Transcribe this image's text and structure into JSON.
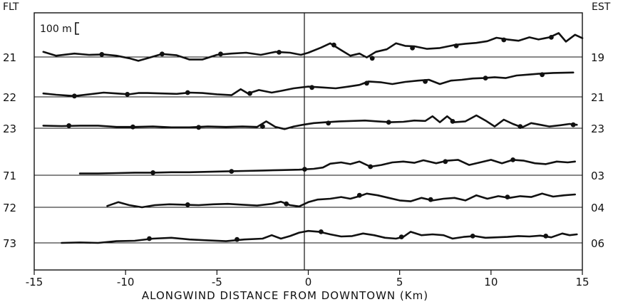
{
  "chart_data": {
    "type": "line",
    "title": "",
    "xlabel": "ALONGWIND DISTANCE FROM DOWNTOWN (Km)",
    "ylabel": "",
    "xlim": [
      -15,
      15
    ],
    "x_ticks": [
      "-15",
      "-10",
      "-5",
      "0",
      "5",
      "10",
      "15"
    ],
    "left_axis_title": "FLT",
    "right_axis_title": "EST",
    "scale_bar_label": "100 m",
    "grid": "horizontal baselines at each flight level",
    "line_color": "#111111",
    "series": [
      {
        "name": "21",
        "est": "19",
        "points": [
          [
            -14.5,
            12
          ],
          [
            -13.8,
            3
          ],
          [
            -12.8,
            8
          ],
          [
            -12,
            5
          ],
          [
            -11.2,
            6
          ],
          [
            -10.5,
            3
          ],
          [
            -9.8,
            -3
          ],
          [
            -9.3,
            -9
          ],
          [
            -8.8,
            -3
          ],
          [
            -8,
            7
          ],
          [
            -7.2,
            4
          ],
          [
            -6.5,
            -6
          ],
          [
            -5.8,
            -6
          ],
          [
            -5,
            5
          ],
          [
            -4.2,
            8
          ],
          [
            -3.4,
            10
          ],
          [
            -2.6,
            5
          ],
          [
            -1.8,
            12
          ],
          [
            -1,
            10
          ],
          [
            -0.4,
            5
          ],
          [
            0,
            10
          ],
          [
            0.7,
            22
          ],
          [
            1.2,
            32
          ],
          [
            1.8,
            16
          ],
          [
            2.3,
            3
          ],
          [
            2.8,
            8
          ],
          [
            3.2,
            -1
          ],
          [
            3.7,
            12
          ],
          [
            4.3,
            18
          ],
          [
            4.8,
            32
          ],
          [
            5.3,
            26
          ],
          [
            5.8,
            25
          ],
          [
            6.5,
            19
          ],
          [
            7.2,
            21
          ],
          [
            8,
            28
          ],
          [
            8.6,
            31
          ],
          [
            9.2,
            33
          ],
          [
            9.8,
            37
          ],
          [
            10.3,
            45
          ],
          [
            10.9,
            41
          ],
          [
            11.5,
            38
          ],
          [
            12.1,
            46
          ],
          [
            12.6,
            41
          ],
          [
            13.2,
            46
          ],
          [
            13.7,
            56
          ],
          [
            14.1,
            36
          ],
          [
            14.6,
            52
          ],
          [
            15,
            44
          ]
        ],
        "markers": [
          [
            -11.3,
            6
          ],
          [
            -8,
            7
          ],
          [
            -4.8,
            7
          ],
          [
            -1.6,
            11
          ],
          [
            1.4,
            28
          ],
          [
            3.5,
            -3
          ],
          [
            5.7,
            21
          ],
          [
            8.1,
            26
          ],
          [
            10.7,
            40
          ],
          [
            13.3,
            46
          ]
        ]
      },
      {
        "name": "22",
        "est": "21",
        "points": [
          [
            -14.5,
            8
          ],
          [
            -13.8,
            5
          ],
          [
            -12.8,
            2
          ],
          [
            -12,
            6
          ],
          [
            -11.2,
            10
          ],
          [
            -10.5,
            8
          ],
          [
            -9.8,
            6
          ],
          [
            -9.3,
            9
          ],
          [
            -8.8,
            9
          ],
          [
            -8,
            8
          ],
          [
            -7.2,
            7
          ],
          [
            -6.5,
            10
          ],
          [
            -5.8,
            9
          ],
          [
            -5,
            6
          ],
          [
            -4.2,
            4
          ],
          [
            -3.7,
            18
          ],
          [
            -3.3,
            8
          ],
          [
            -2.7,
            16
          ],
          [
            -2,
            10
          ],
          [
            -1.5,
            14
          ],
          [
            -0.8,
            20
          ],
          [
            0,
            24
          ],
          [
            0.8,
            22
          ],
          [
            1.5,
            20
          ],
          [
            2.2,
            24
          ],
          [
            2.8,
            28
          ],
          [
            3.3,
            36
          ],
          [
            4,
            34
          ],
          [
            4.6,
            30
          ],
          [
            5.3,
            35
          ],
          [
            6,
            38
          ],
          [
            6.6,
            40
          ],
          [
            7.2,
            30
          ],
          [
            7.8,
            38
          ],
          [
            8.4,
            40
          ],
          [
            9,
            43
          ],
          [
            9.6,
            44
          ],
          [
            10.2,
            46
          ],
          [
            10.8,
            44
          ],
          [
            11.4,
            50
          ],
          [
            12,
            52
          ],
          [
            12.6,
            54
          ],
          [
            13.4,
            56
          ],
          [
            14.5,
            57
          ]
        ],
        "markers": [
          [
            -12.8,
            2
          ],
          [
            -9.9,
            6
          ],
          [
            -6.6,
            10
          ],
          [
            -3.2,
            8
          ],
          [
            0.2,
            22
          ],
          [
            3.2,
            32
          ],
          [
            6.4,
            36
          ],
          [
            9.7,
            44
          ],
          [
            12.8,
            52
          ]
        ]
      },
      {
        "name": "23",
        "est": "23",
        "points": [
          [
            -14.5,
            6
          ],
          [
            -13.5,
            5
          ],
          [
            -12.5,
            6
          ],
          [
            -11.5,
            6
          ],
          [
            -10.5,
            3
          ],
          [
            -9.5,
            3
          ],
          [
            -8.5,
            4
          ],
          [
            -7.5,
            2
          ],
          [
            -6.5,
            2
          ],
          [
            -5.5,
            4
          ],
          [
            -4.5,
            3
          ],
          [
            -3.6,
            4
          ],
          [
            -2.8,
            3
          ],
          [
            -2.3,
            16
          ],
          [
            -1.8,
            3
          ],
          [
            -1.3,
            -2
          ],
          [
            -0.8,
            4
          ],
          [
            -0.3,
            8
          ],
          [
            0.3,
            12
          ],
          [
            1,
            14
          ],
          [
            1.7,
            16
          ],
          [
            2.4,
            17
          ],
          [
            3.1,
            18
          ],
          [
            3.8,
            16
          ],
          [
            4.5,
            14
          ],
          [
            5.2,
            15
          ],
          [
            5.8,
            18
          ],
          [
            6.4,
            17
          ],
          [
            6.8,
            28
          ],
          [
            7.2,
            14
          ],
          [
            7.6,
            28
          ],
          [
            8,
            14
          ],
          [
            8.6,
            16
          ],
          [
            9.2,
            30
          ],
          [
            9.7,
            18
          ],
          [
            10.2,
            4
          ],
          [
            10.7,
            20
          ],
          [
            11.2,
            10
          ],
          [
            11.7,
            2
          ],
          [
            12.2,
            12
          ],
          [
            12.7,
            8
          ],
          [
            13.2,
            4
          ],
          [
            13.8,
            7
          ],
          [
            14.3,
            10
          ],
          [
            14.7,
            8
          ]
        ],
        "markers": [
          [
            -13.1,
            6
          ],
          [
            -9.6,
            3
          ],
          [
            -6,
            2
          ],
          [
            -2.5,
            4
          ],
          [
            1.1,
            12
          ],
          [
            4.4,
            14
          ],
          [
            7.9,
            16
          ],
          [
            11.6,
            4
          ],
          [
            14.5,
            8
          ]
        ]
      },
      {
        "name": "71",
        "est": "03",
        "points": [
          [
            -12.5,
            4
          ],
          [
            -11.5,
            4
          ],
          [
            -10.5,
            5
          ],
          [
            -9.5,
            6
          ],
          [
            -8.5,
            6
          ],
          [
            -7.5,
            7
          ],
          [
            -6.5,
            7
          ],
          [
            -5.5,
            8
          ],
          [
            -4.5,
            9
          ],
          [
            -3.5,
            10
          ],
          [
            -2.5,
            11
          ],
          [
            -1.5,
            12
          ],
          [
            -0.5,
            13
          ],
          [
            0.3,
            15
          ],
          [
            0.8,
            18
          ],
          [
            1.2,
            27
          ],
          [
            1.8,
            30
          ],
          [
            2.3,
            26
          ],
          [
            2.8,
            32
          ],
          [
            3.4,
            20
          ],
          [
            4,
            24
          ],
          [
            4.6,
            30
          ],
          [
            5.2,
            32
          ],
          [
            5.8,
            29
          ],
          [
            6.3,
            35
          ],
          [
            7,
            28
          ],
          [
            7.6,
            34
          ],
          [
            8.2,
            36
          ],
          [
            8.8,
            24
          ],
          [
            9.4,
            30
          ],
          [
            10,
            36
          ],
          [
            10.6,
            28
          ],
          [
            11.2,
            36
          ],
          [
            11.8,
            34
          ],
          [
            12.4,
            28
          ],
          [
            13,
            26
          ],
          [
            13.6,
            32
          ],
          [
            14.2,
            30
          ],
          [
            14.6,
            32
          ]
        ],
        "markers": [
          [
            -8.5,
            6
          ],
          [
            -4.2,
            9
          ],
          [
            -0.2,
            14
          ],
          [
            3.4,
            20
          ],
          [
            7.5,
            32
          ],
          [
            11.2,
            36
          ]
        ]
      },
      {
        "name": "72",
        "est": "04",
        "points": [
          [
            -11,
            3
          ],
          [
            -10.4,
            12
          ],
          [
            -9.8,
            5
          ],
          [
            -9.1,
            0
          ],
          [
            -8.4,
            5
          ],
          [
            -7.6,
            7
          ],
          [
            -6.8,
            6
          ],
          [
            -6,
            5
          ],
          [
            -5.2,
            7
          ],
          [
            -4.4,
            8
          ],
          [
            -3.6,
            6
          ],
          [
            -2.8,
            4
          ],
          [
            -2,
            8
          ],
          [
            -1.5,
            13
          ],
          [
            -1,
            5
          ],
          [
            -0.5,
            2
          ],
          [
            0,
            12
          ],
          [
            0.5,
            18
          ],
          [
            1.2,
            20
          ],
          [
            1.8,
            24
          ],
          [
            2.3,
            20
          ],
          [
            2.8,
            26
          ],
          [
            3.2,
            32
          ],
          [
            3.8,
            28
          ],
          [
            4.4,
            22
          ],
          [
            5,
            16
          ],
          [
            5.6,
            14
          ],
          [
            6.2,
            22
          ],
          [
            6.8,
            16
          ],
          [
            7.4,
            20
          ],
          [
            8,
            22
          ],
          [
            8.6,
            16
          ],
          [
            9.2,
            28
          ],
          [
            9.8,
            20
          ],
          [
            10.4,
            26
          ],
          [
            11,
            22
          ],
          [
            11.6,
            26
          ],
          [
            12.2,
            24
          ],
          [
            12.8,
            32
          ],
          [
            13.4,
            25
          ],
          [
            14,
            28
          ],
          [
            14.6,
            30
          ]
        ],
        "markers": [
          [
            -6.6,
            6
          ],
          [
            -1.2,
            8
          ],
          [
            2.8,
            28
          ],
          [
            6.7,
            18
          ],
          [
            10.9,
            24
          ]
        ]
      },
      {
        "name": "73",
        "est": "06",
        "points": [
          [
            -13.5,
            0
          ],
          [
            -12.5,
            1
          ],
          [
            -11.5,
            0
          ],
          [
            -10.5,
            4
          ],
          [
            -9.5,
            5
          ],
          [
            -8.5,
            10
          ],
          [
            -7.5,
            12
          ],
          [
            -6.5,
            8
          ],
          [
            -5.5,
            6
          ],
          [
            -4.5,
            4
          ],
          [
            -3.5,
            8
          ],
          [
            -2.5,
            10
          ],
          [
            -2,
            18
          ],
          [
            -1.5,
            10
          ],
          [
            -1,
            16
          ],
          [
            -0.5,
            24
          ],
          [
            0,
            28
          ],
          [
            0.6,
            26
          ],
          [
            1.2,
            20
          ],
          [
            1.8,
            15
          ],
          [
            2.4,
            16
          ],
          [
            3,
            22
          ],
          [
            3.6,
            18
          ],
          [
            4.2,
            12
          ],
          [
            4.8,
            10
          ],
          [
            5.2,
            14
          ],
          [
            5.6,
            26
          ],
          [
            6.2,
            18
          ],
          [
            6.8,
            20
          ],
          [
            7.4,
            18
          ],
          [
            7.9,
            10
          ],
          [
            8.5,
            14
          ],
          [
            9.1,
            16
          ],
          [
            9.7,
            12
          ],
          [
            10.3,
            13
          ],
          [
            10.9,
            14
          ],
          [
            11.5,
            16
          ],
          [
            12.1,
            15
          ],
          [
            12.7,
            17
          ],
          [
            13.3,
            13
          ],
          [
            13.9,
            22
          ],
          [
            14.3,
            18
          ],
          [
            14.7,
            20
          ]
        ],
        "markers": [
          [
            -8.7,
            10
          ],
          [
            -3.9,
            8
          ],
          [
            0.7,
            26
          ],
          [
            5.1,
            14
          ],
          [
            9,
            16
          ],
          [
            13,
            16
          ]
        ]
      }
    ]
  }
}
